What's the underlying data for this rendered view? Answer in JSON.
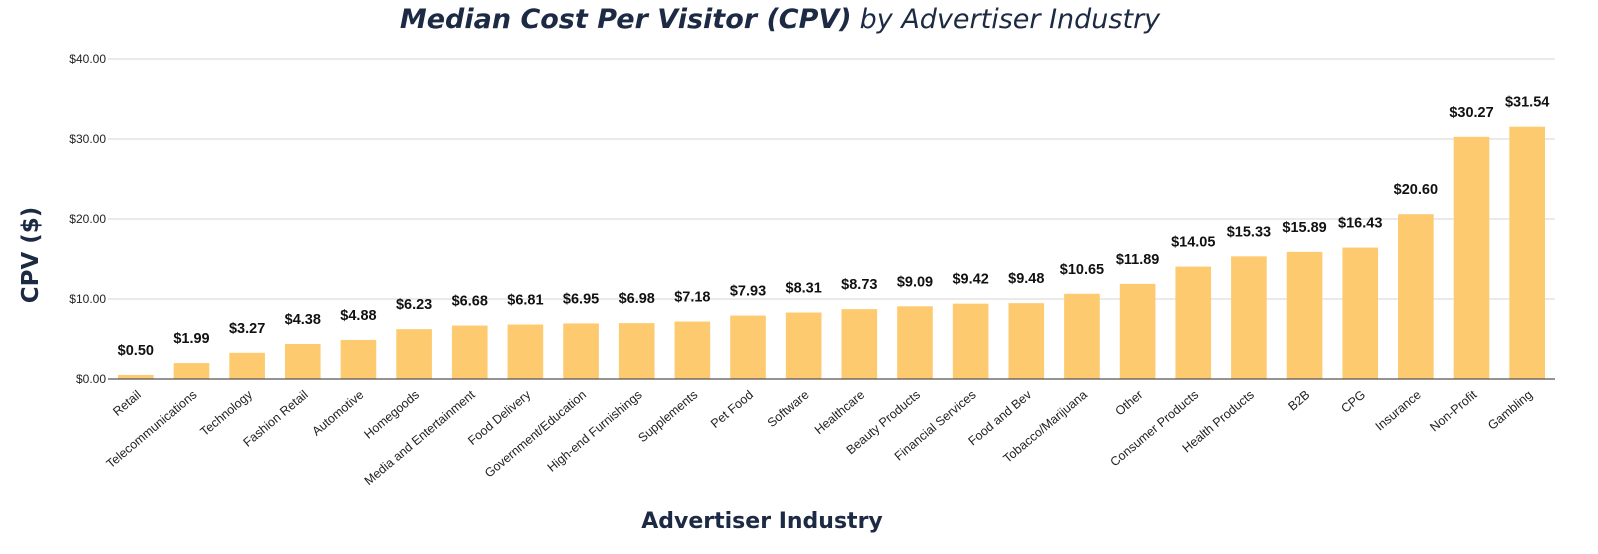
{
  "colors": {
    "bar": "#fdca6f",
    "text_dark": "#1c2a44",
    "grid": "#d4d4d4",
    "axis": "#555555"
  },
  "chart_data": {
    "type": "bar",
    "title": "Median Cost Per Visitor (CPV)",
    "subtitle": "by Advertiser Industry",
    "xlabel": "Advertiser Industry",
    "ylabel": "CPV ($)",
    "ylim": [
      0,
      40
    ],
    "yticks": [
      0,
      10,
      20,
      30,
      40
    ],
    "ytick_labels": [
      "$0.00",
      "$10.00",
      "$20.00",
      "$30.00",
      "$40.00"
    ],
    "grid": true,
    "categories": [
      "Retail",
      "Telecommunications",
      "Technology",
      "Fashion Retail",
      "Automotive",
      "Homegoods",
      "Media and Entertainment",
      "Food Delivery",
      "Government/Education",
      "High-end Furnishings",
      "Supplements",
      "Pet Food",
      "Software",
      "Healthcare",
      "Beauty Products",
      "Financial Services",
      "Food and Bev",
      "Tobacco/Marijuana",
      "Other",
      "Consumer Products",
      "Health Products",
      "B2B",
      "CPG",
      "Insurance",
      "Non-Profit",
      "Gambling"
    ],
    "values": [
      0.5,
      1.99,
      3.27,
      4.38,
      4.88,
      6.23,
      6.68,
      6.81,
      6.95,
      6.98,
      7.18,
      7.93,
      8.31,
      8.73,
      9.09,
      9.42,
      9.48,
      10.65,
      11.89,
      14.05,
      15.33,
      15.89,
      16.43,
      20.6,
      30.27,
      31.54
    ],
    "value_labels": [
      "$0.50",
      "$1.99",
      "$3.27",
      "$4.38",
      "$4.88",
      "$6.23",
      "$6.68",
      "$6.81",
      "$6.95",
      "$6.98",
      "$7.18",
      "$7.93",
      "$8.31",
      "$8.73",
      "$9.09",
      "$9.42",
      "$9.48",
      "$10.65",
      "$11.89",
      "$14.05",
      "$15.33",
      "$15.89",
      "$16.43",
      "$20.60",
      "$30.27",
      "$31.54"
    ]
  }
}
